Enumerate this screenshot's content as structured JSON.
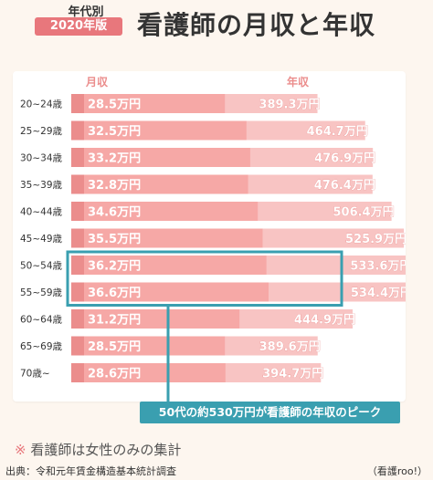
{
  "header": {
    "badge_top": "年代別",
    "badge_year": "2020年版",
    "title": "看護師の月収と年収"
  },
  "colors": {
    "monthly_bar": "#f6a8a6",
    "annual_bar": "#f8c4c3",
    "bar_accent": "#eb8d8c",
    "highlight_frame": "#3a9fb0",
    "value_text": "#ffffff"
  },
  "chart_data": {
    "type": "bar",
    "orientation": "horizontal",
    "categories": [
      "20~24歳",
      "25~29歳",
      "30~34歳",
      "35~39歳",
      "40~44歳",
      "45~49歳",
      "50~54歳",
      "55~59歳",
      "60~64歳",
      "65~69歳",
      "70歳~"
    ],
    "series": [
      {
        "name": "月収",
        "values": [
          28.5,
          32.5,
          33.2,
          32.8,
          34.6,
          35.5,
          36.2,
          36.6,
          31.2,
          28.5,
          28.6
        ],
        "labels": [
          "28.5万円",
          "32.5万円",
          "33.2万円",
          "32.8万円",
          "34.6万円",
          "35.5万円",
          "36.2万円",
          "36.6万円",
          "31.2万円",
          "28.5万円",
          "28.6万円"
        ]
      },
      {
        "name": "年収",
        "values": [
          389.3,
          464.7,
          476.9,
          476.4,
          506.4,
          525.9,
          533.6,
          534.4,
          444.9,
          389.6,
          394.7
        ],
        "labels": [
          "389.3万円",
          "464.7万円",
          "476.9万円",
          "476.4万円",
          "506.4万円",
          "525.9万円",
          "533.6万円",
          "534.4万円",
          "444.9万円",
          "389.6万円",
          "394.7万円"
        ]
      }
    ],
    "highlight_categories": [
      "50~54歳",
      "55~59歳"
    ],
    "annotation": "50代の約530万円が看護師の年収のピーク",
    "unit": "万円"
  },
  "footer": {
    "note_mark": "※",
    "note": "看護師は女性のみの集計",
    "source": "出典：令和元年賃金構造基本統計調査",
    "credit": "（看護roo!）"
  }
}
